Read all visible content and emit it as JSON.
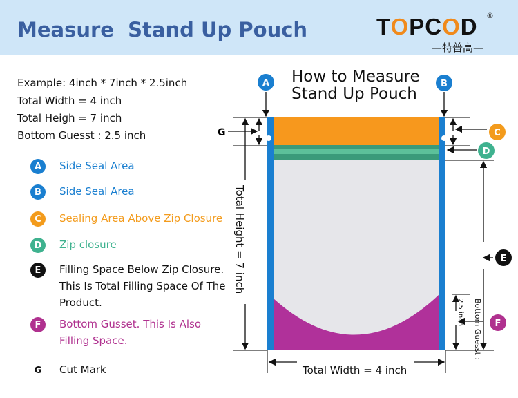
{
  "header": {
    "title": "Measure  Stand Up Pouch",
    "logo": {
      "t": "T",
      "o1": "O",
      "pc": "PC",
      "o2": "O",
      "d": "D",
      "sub": "—特普高—",
      "reg": "®"
    }
  },
  "example": [
    "Example: 4inch * 7inch * 2.5inch",
    "Total Width = 4 inch",
    "Total Heigh = 7 inch",
    "Bottom Guesst : 2.5 inch"
  ],
  "legend": [
    {
      "letter": "A",
      "text": "Side Seal Area",
      "color": "#1a7fd0"
    },
    {
      "letter": "B",
      "text": "Side Seal Area",
      "color": "#1a7fd0"
    },
    {
      "letter": "C",
      "text": "Sealing Area Above Zip Closure",
      "color": "#f39b1c"
    },
    {
      "letter": "D",
      "text": "Zip closure",
      "color": "#3fb28f"
    },
    {
      "letter": "E",
      "text": "Filling Space Below Zip Closure. This Is Total Filling Space Of The Product.",
      "color": "#111111"
    },
    {
      "letter": "F",
      "text": "Bottom Gusset. This Is Also Filling Space.",
      "color": "#b0318f"
    },
    {
      "letter": "G",
      "text": "Cut Mark",
      "color": "#111111"
    }
  ],
  "diagram": {
    "title1": "How to Measure",
    "title2": "Stand Up Pouch",
    "total_height": "Total Height = 7 inch",
    "total_width": "Total Width = 4 inch",
    "gusset": "2.5 inch",
    "bottom_guesst": "Bottom Guesst :",
    "g": "G"
  }
}
